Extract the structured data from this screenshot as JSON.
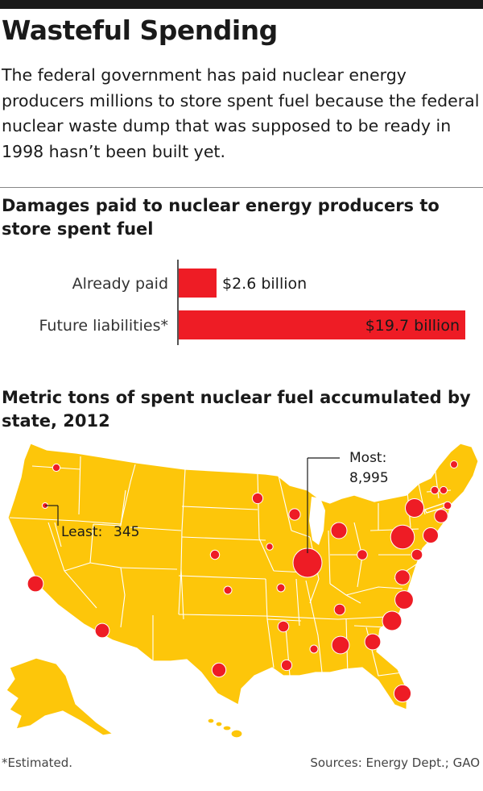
{
  "headline": "Wasteful Spending",
  "dek": "The federal government has paid nuclear energy producers millions to store spent fuel because the federal nuclear waste dump that was supposed to be ready in 1998 hasn’t been built yet.",
  "colors": {
    "bar": "#ee1c25",
    "map_fill": "#fdc60a",
    "map_border": "#ffffff",
    "dot": "#ee1c25",
    "topbar": "#1a1a1a"
  },
  "icons": {
    "map": "us-states-map",
    "dots": "proportional-circle"
  },
  "footer": {
    "footnote": "*Estimated.",
    "sources": "Sources: Energy Dept.; GAO"
  },
  "chart_data": [
    {
      "type": "bar",
      "orientation": "horizontal",
      "title": "Damages paid to nuclear energy producers to store spent fuel",
      "categories": [
        "Already paid",
        "Future liabilities*"
      ],
      "values": [
        2.6,
        19.7
      ],
      "value_labels": [
        "$2.6 billion",
        "$19.7 billion"
      ],
      "unit": "billion dollars",
      "xlim": [
        0,
        19.7
      ],
      "grid": false
    },
    {
      "type": "scatter",
      "kind": "proportional-symbol-map",
      "title": "Metric tons of spent nuclear fuel accumulated by state, 2012",
      "unit": "metric tons",
      "annotations": [
        {
          "label": "Most:",
          "value": "8,995",
          "state": "IL"
        },
        {
          "label": "Least:",
          "value": "345",
          "state": "OR"
        }
      ],
      "points": [
        {
          "state": "WA",
          "value": 600
        },
        {
          "state": "OR",
          "value": 345
        },
        {
          "state": "CA",
          "value": 2700
        },
        {
          "state": "AZ",
          "value": 2200
        },
        {
          "state": "NE",
          "value": 900
        },
        {
          "state": "KS",
          "value": 700
        },
        {
          "state": "MN",
          "value": 1200
        },
        {
          "state": "IA",
          "value": 500
        },
        {
          "state": "MO",
          "value": 700
        },
        {
          "state": "WI",
          "value": 1400
        },
        {
          "state": "IL",
          "value": 8995
        },
        {
          "state": "MI",
          "value": 2800
        },
        {
          "state": "OH",
          "value": 1100
        },
        {
          "state": "PA",
          "value": 6100
        },
        {
          "state": "NY",
          "value": 3700
        },
        {
          "state": "NJ",
          "value": 2500
        },
        {
          "state": "MD",
          "value": 1300
        },
        {
          "state": "VA",
          "value": 2400
        },
        {
          "state": "NC",
          "value": 3600
        },
        {
          "state": "SC",
          "value": 4000
        },
        {
          "state": "GA",
          "value": 2700
        },
        {
          "state": "AL",
          "value": 3300
        },
        {
          "state": "TN",
          "value": 1300
        },
        {
          "state": "AR",
          "value": 1300
        },
        {
          "state": "MS",
          "value": 700
        },
        {
          "state": "LA",
          "value": 1200
        },
        {
          "state": "TX",
          "value": 2100
        },
        {
          "state": "FL",
          "value": 3100
        },
        {
          "state": "VT",
          "value": 650
        },
        {
          "state": "NH",
          "value": 600
        },
        {
          "state": "ME",
          "value": 550
        },
        {
          "state": "MA",
          "value": 650
        },
        {
          "state": "CT",
          "value": 1900
        }
      ]
    }
  ]
}
